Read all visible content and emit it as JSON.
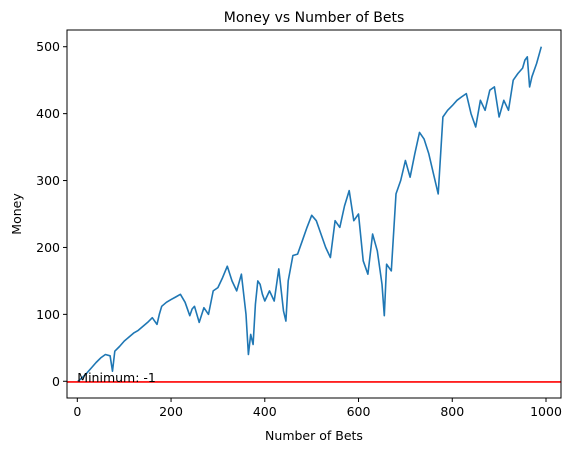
{
  "chart_data": {
    "type": "line",
    "title": "Money vs Number of Bets",
    "xlabel": "Number of Bets",
    "ylabel": "Money",
    "xlim": [
      -22,
      1032
    ],
    "ylim": [
      -25,
      525
    ],
    "xticks": [
      0,
      200,
      400,
      600,
      800,
      1000
    ],
    "yticks": [
      0,
      100,
      200,
      300,
      400,
      500
    ],
    "grid": false,
    "legend": "none",
    "colors": {
      "series": "#1f77b4",
      "minimum_line": "#ff0000"
    },
    "series": [
      {
        "color": "#1f77b4",
        "x": [
          0,
          10,
          20,
          30,
          40,
          50,
          60,
          70,
          75,
          80,
          90,
          100,
          110,
          120,
          130,
          140,
          150,
          160,
          170,
          175,
          180,
          190,
          200,
          210,
          220,
          230,
          240,
          245,
          250,
          260,
          270,
          280,
          290,
          300,
          310,
          320,
          330,
          340,
          350,
          360,
          365,
          370,
          375,
          380,
          385,
          390,
          395,
          400,
          410,
          420,
          430,
          440,
          445,
          450,
          460,
          470,
          480,
          490,
          500,
          510,
          520,
          530,
          540,
          550,
          560,
          570,
          580,
          590,
          600,
          610,
          620,
          630,
          640,
          650,
          655,
          660,
          670,
          680,
          690,
          700,
          710,
          720,
          730,
          740,
          750,
          760,
          770,
          780,
          790,
          800,
          810,
          820,
          830,
          840,
          850,
          860,
          870,
          880,
          890,
          900,
          910,
          920,
          930,
          940,
          950,
          955,
          960,
          965,
          970,
          980,
          990
        ],
        "values": [
          -1,
          5,
          12,
          20,
          28,
          35,
          40,
          38,
          15,
          45,
          52,
          60,
          66,
          72,
          76,
          82,
          88,
          95,
          85,
          100,
          112,
          118,
          122,
          126,
          130,
          118,
          98,
          108,
          112,
          88,
          110,
          100,
          135,
          140,
          155,
          172,
          150,
          135,
          160,
          100,
          40,
          70,
          55,
          115,
          150,
          145,
          130,
          120,
          135,
          120,
          168,
          105,
          90,
          150,
          188,
          190,
          210,
          230,
          248,
          240,
          220,
          200,
          185,
          240,
          230,
          262,
          285,
          240,
          250,
          180,
          160,
          220,
          195,
          145,
          98,
          175,
          165,
          280,
          300,
          330,
          305,
          340,
          372,
          362,
          340,
          310,
          280,
          395,
          405,
          412,
          420,
          425,
          430,
          400,
          380,
          420,
          405,
          435,
          440,
          395,
          420,
          405,
          450,
          460,
          468,
          480,
          485,
          440,
          455,
          475,
          500
        ]
      }
    ],
    "hline": {
      "y": -1,
      "color": "#ff0000"
    },
    "annotations": [
      {
        "text": "Minimum: -1",
        "x": 0,
        "y": -1
      }
    ]
  }
}
